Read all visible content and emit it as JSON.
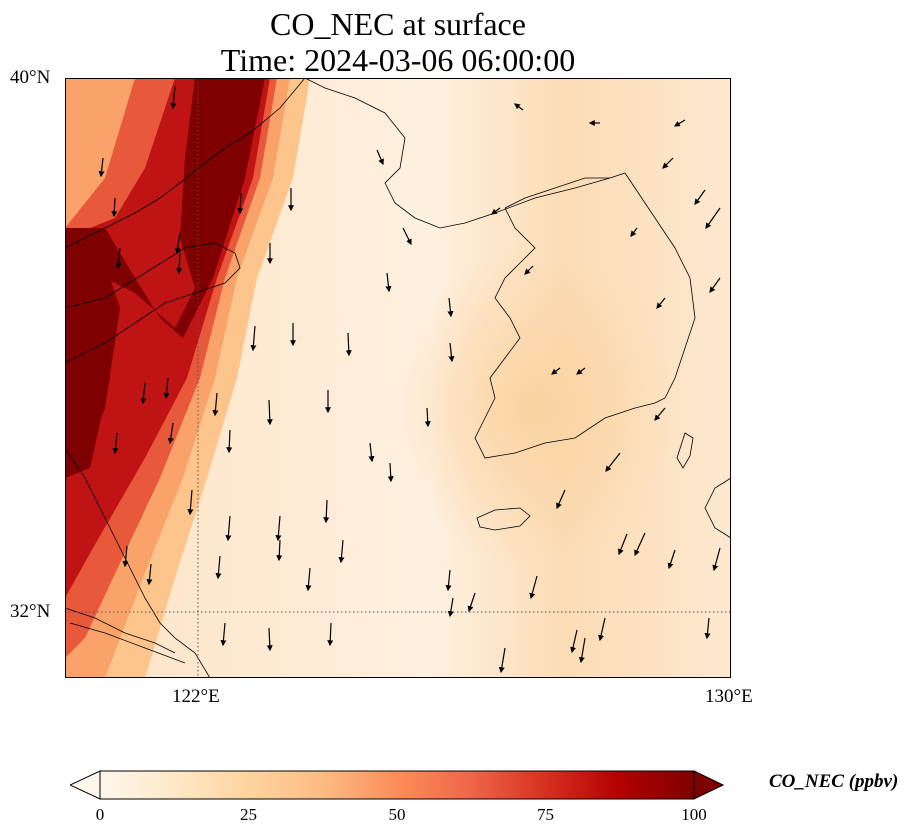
{
  "title": {
    "line1": "CO_NEC at surface",
    "line2": "Time: 2024-03-06 06:00:00"
  },
  "map": {
    "lat_ticks": [
      "40°N",
      "32°N"
    ],
    "lon_ticks": [
      "122°E",
      "130°E"
    ],
    "gridline_style": "dotted",
    "field_summary": "high CO concentrations (75–100+ ppbv) along the Chinese coast west of ~122.5°E, low concentrations (0–20 ppbv) over the Yellow Sea and Korean Peninsula",
    "wind_vectors": "predominantly southward / south-southwestward"
  },
  "colorbar": {
    "label": "CO_NEC (ppbv)",
    "ticks": [
      "0",
      "25",
      "50",
      "75",
      "100"
    ],
    "min": 0,
    "max": 100,
    "colormap": "OrRd",
    "extend": "both",
    "colors": [
      "#fff7ec",
      "#fee8c8",
      "#fdd49e",
      "#fdbb84",
      "#fc8d59",
      "#ef6548",
      "#d7301f",
      "#b30000",
      "#7f0000"
    ]
  }
}
